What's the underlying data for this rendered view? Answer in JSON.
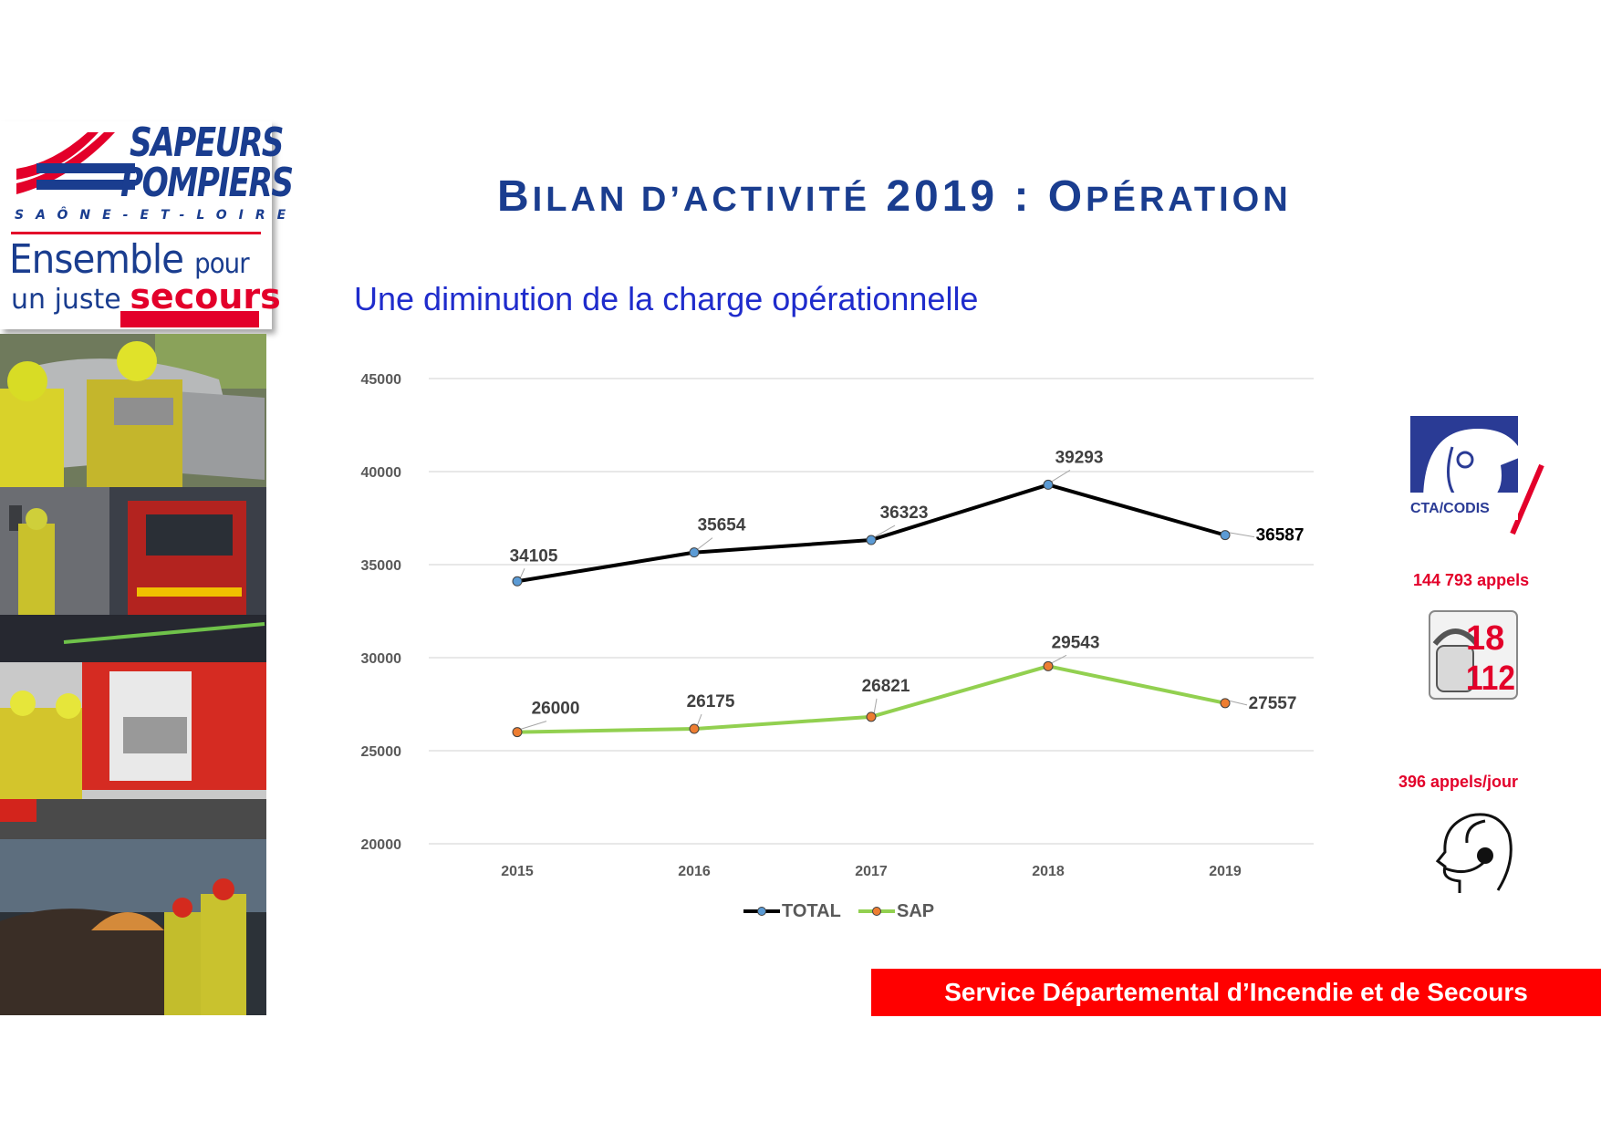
{
  "logo": {
    "line1": "SAPEURS",
    "line2": "POMPIERS",
    "department": "SAÔNE-ET-LOIRE",
    "slogan_a": "Ensemble",
    "slogan_b": "pour",
    "slogan_c": "un juste",
    "slogan_d": "secours"
  },
  "title": {
    "part1_initial": "B",
    "part1_rest": "ILAN D’ACTIVITÉ",
    "year": "2019",
    "sep": ":",
    "part2_initial": "O",
    "part2_rest": "PÉRATION"
  },
  "subtitle": "Une diminution de la charge opérationnelle",
  "chart_data": {
    "type": "line",
    "title": "",
    "xlabel": "",
    "ylabel": "",
    "x": [
      "2015",
      "2016",
      "2017",
      "2018",
      "2019"
    ],
    "ylim": [
      20000,
      45000
    ],
    "yticks": [
      "45000",
      "40000",
      "35000",
      "30000",
      "25000",
      "20000"
    ],
    "grid": true,
    "legend_position": "bottom",
    "series": [
      {
        "name": "TOTAL",
        "values": [
          34105,
          35654,
          36323,
          39293,
          36587
        ],
        "labels": [
          "34105",
          "35654",
          "36323",
          "39293",
          "36587"
        ],
        "line_color": "#000000",
        "marker_color": "#5b9bd5"
      },
      {
        "name": "SAP",
        "values": [
          26000,
          26175,
          26821,
          29543,
          27557
        ],
        "labels": [
          "26000",
          "26175",
          "26821",
          "29543",
          "27557"
        ],
        "line_color": "#92d050",
        "marker_color": "#ed7d31"
      }
    ]
  },
  "sidebar_right": {
    "cta_label": "CTA/CODIS",
    "calls": "144 793 appels",
    "phone_top": "18",
    "phone_bottom": "112",
    "per_day": "396 appels/jour"
  },
  "footer": "Service Départemental d’Incendie et de Secours",
  "colors": {
    "accent_blue": "#1a3d8f",
    "accent_red": "#e3002a",
    "banner_red": "#ff0000"
  }
}
